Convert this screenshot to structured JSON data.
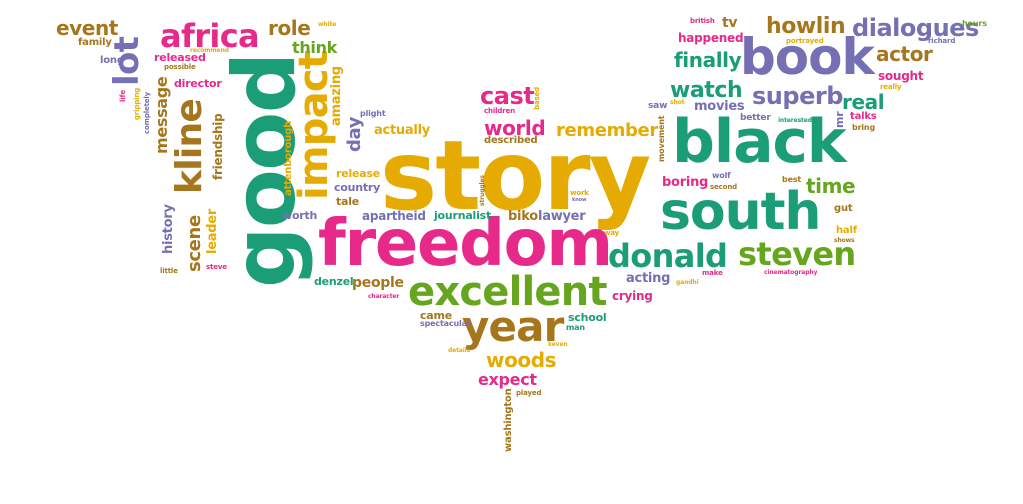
{
  "palette": {
    "teal": "#1b9e77",
    "gold": "#e6ab02",
    "pink": "#e7298a",
    "purple": "#7570b3",
    "brown": "#a6761d",
    "green": "#66a61e",
    "orange": "#d95f02"
  },
  "words": [
    {
      "text": "story",
      "color": "gold"
    },
    {
      "text": "good",
      "color": "teal"
    },
    {
      "text": "freedom",
      "color": "pink"
    },
    {
      "text": "black",
      "color": "teal"
    },
    {
      "text": "south",
      "color": "teal"
    },
    {
      "text": "excellent",
      "color": "green"
    },
    {
      "text": "book",
      "color": "purple"
    },
    {
      "text": "year",
      "color": "brown"
    },
    {
      "text": "impact",
      "color": "gold"
    },
    {
      "text": "kline",
      "color": "brown"
    },
    {
      "text": "steven",
      "color": "green"
    },
    {
      "text": "donald",
      "color": "teal"
    },
    {
      "text": "africa",
      "color": "pink"
    },
    {
      "text": "lot",
      "color": "purple"
    },
    {
      "text": "dialogues",
      "color": "purple"
    },
    {
      "text": "howlin",
      "color": "brown"
    },
    {
      "text": "superb",
      "color": "purple"
    },
    {
      "text": "cast",
      "color": "pink"
    },
    {
      "text": "watch",
      "color": "teal"
    },
    {
      "text": "time",
      "color": "green"
    },
    {
      "text": "real",
      "color": "teal"
    },
    {
      "text": "world",
      "color": "pink"
    },
    {
      "text": "remember",
      "color": "gold"
    },
    {
      "text": "woods",
      "color": "gold"
    },
    {
      "text": "finally",
      "color": "teal"
    },
    {
      "text": "actor",
      "color": "brown"
    },
    {
      "text": "event",
      "color": "brown"
    },
    {
      "text": "role",
      "color": "brown"
    },
    {
      "text": "think",
      "color": "green"
    },
    {
      "text": "expect",
      "color": "pink"
    },
    {
      "text": "scene",
      "color": "brown"
    },
    {
      "text": "message",
      "color": "brown"
    },
    {
      "text": "day",
      "color": "purple"
    },
    {
      "text": "amazing",
      "color": "gold"
    },
    {
      "text": "actually",
      "color": "gold"
    },
    {
      "text": "happened",
      "color": "pink"
    },
    {
      "text": "movies",
      "color": "purple"
    },
    {
      "text": "tv",
      "color": "brown"
    },
    {
      "text": "sought",
      "color": "pink"
    },
    {
      "text": "boring",
      "color": "pink"
    },
    {
      "text": "acting",
      "color": "purple"
    },
    {
      "text": "crying",
      "color": "pink"
    },
    {
      "text": "people",
      "color": "brown"
    },
    {
      "text": "school",
      "color": "teal"
    },
    {
      "text": "biko",
      "color": "brown"
    },
    {
      "text": "lawyer",
      "color": "purple"
    },
    {
      "text": "apartheid",
      "color": "purple"
    },
    {
      "text": "journalist",
      "color": "teal"
    },
    {
      "text": "country",
      "color": "purple"
    },
    {
      "text": "release",
      "color": "gold"
    },
    {
      "text": "tale",
      "color": "brown"
    },
    {
      "text": "worth",
      "color": "purple"
    },
    {
      "text": "denzel",
      "color": "teal"
    },
    {
      "text": "came",
      "color": "brown"
    },
    {
      "text": "spectacular",
      "color": "purple"
    },
    {
      "text": "man",
      "color": "teal"
    },
    {
      "text": "history",
      "color": "purple"
    },
    {
      "text": "leader",
      "color": "gold"
    },
    {
      "text": "friendship",
      "color": "brown"
    },
    {
      "text": "attenborough",
      "color": "gold"
    },
    {
      "text": "released",
      "color": "pink"
    },
    {
      "text": "director",
      "color": "pink"
    },
    {
      "text": "long",
      "color": "purple"
    },
    {
      "text": "family",
      "color": "brown"
    },
    {
      "text": "possible",
      "color": "brown"
    },
    {
      "text": "recommend",
      "color": "gold"
    },
    {
      "text": "white",
      "color": "gold"
    },
    {
      "text": "life",
      "color": "pink"
    },
    {
      "text": "gripping",
      "color": "gold"
    },
    {
      "text": "completely",
      "color": "purple"
    },
    {
      "text": "plight",
      "color": "purple"
    },
    {
      "text": "children",
      "color": "pink"
    },
    {
      "text": "based",
      "color": "gold"
    },
    {
      "text": "described",
      "color": "brown"
    },
    {
      "text": "struggles",
      "color": "brown"
    },
    {
      "text": "work",
      "color": "gold"
    },
    {
      "text": "know",
      "color": "purple"
    },
    {
      "text": "way",
      "color": "gold"
    },
    {
      "text": "movement",
      "color": "brown"
    },
    {
      "text": "saw",
      "color": "purple"
    },
    {
      "text": "shot",
      "color": "gold"
    },
    {
      "text": "better",
      "color": "purple"
    },
    {
      "text": "interested",
      "color": "teal"
    },
    {
      "text": "mr",
      "color": "purple"
    },
    {
      "text": "wolf",
      "color": "purple"
    },
    {
      "text": "second",
      "color": "brown"
    },
    {
      "text": "best",
      "color": "brown"
    },
    {
      "text": "talks",
      "color": "pink"
    },
    {
      "text": "bring",
      "color": "brown"
    },
    {
      "text": "gut",
      "color": "brown"
    },
    {
      "text": "half",
      "color": "gold"
    },
    {
      "text": "shows",
      "color": "brown"
    },
    {
      "text": "cinematography",
      "color": "pink"
    },
    {
      "text": "make",
      "color": "pink"
    },
    {
      "text": "gandhi",
      "color": "gold"
    },
    {
      "text": "portrayed",
      "color": "gold"
    },
    {
      "text": "richard",
      "color": "purple"
    },
    {
      "text": "really",
      "color": "gold"
    },
    {
      "text": "hours",
      "color": "green"
    },
    {
      "text": "british",
      "color": "pink"
    },
    {
      "text": "little",
      "color": "brown"
    },
    {
      "text": "steve",
      "color": "pink"
    },
    {
      "text": "character",
      "color": "pink"
    },
    {
      "text": "details",
      "color": "gold"
    },
    {
      "text": "keven",
      "color": "gold"
    },
    {
      "text": "played",
      "color": "brown"
    },
    {
      "text": "washington",
      "color": "brown"
    }
  ]
}
